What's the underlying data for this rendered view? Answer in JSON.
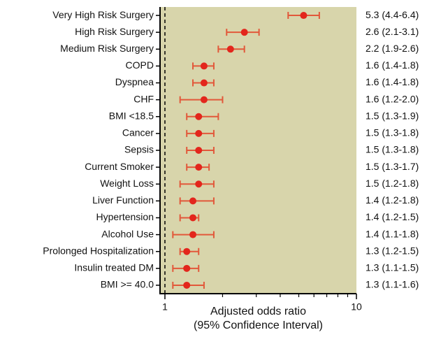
{
  "chart_data": {
    "type": "forest",
    "categories": [
      "Very High Risk Surgery",
      "High Risk Surgery",
      "Medium Risk Surgery",
      "COPD",
      "Dyspnea",
      "CHF",
      "BMI <18.5",
      "Cancer",
      "Sepsis",
      "Current Smoker",
      "Weight Loss",
      "Liver Function",
      "Hypertension",
      "Alcohol Use",
      "Prolonged Hospitalization",
      "Insulin treated DM",
      "BMI >= 40.0"
    ],
    "values": [
      5.3,
      2.6,
      2.2,
      1.6,
      1.6,
      1.6,
      1.5,
      1.5,
      1.5,
      1.5,
      1.5,
      1.4,
      1.4,
      1.4,
      1.3,
      1.3,
      1.3
    ],
    "lower": [
      4.4,
      2.1,
      1.9,
      1.4,
      1.4,
      1.2,
      1.3,
      1.3,
      1.3,
      1.3,
      1.2,
      1.2,
      1.2,
      1.1,
      1.2,
      1.1,
      1.1
    ],
    "upper": [
      6.4,
      3.1,
      2.6,
      1.8,
      1.8,
      2.0,
      1.9,
      1.8,
      1.8,
      1.7,
      1.8,
      1.8,
      1.5,
      1.8,
      1.5,
      1.5,
      1.6
    ],
    "value_labels": [
      "5.3 (4.4-6.4)",
      "2.6 (2.1-3.1)",
      "2.2 (1.9-2.6)",
      "1.6 (1.4-1.8)",
      "1.6 (1.4-1.8)",
      "1.6 (1.2-2.0)",
      "1.5 (1.3-1.9)",
      "1.5 (1.3-1.8)",
      "1.5 (1.3-1.8)",
      "1.5 (1.3-1.7)",
      "1.5 (1.2-1.8)",
      "1.4 (1.2-1.8)",
      "1.4 (1.2-1.5)",
      "1.4 (1.1-1.8)",
      "1.3 (1.2-1.5)",
      "1.3 (1.1-1.5)",
      "1.3 (1.1-1.6)"
    ],
    "xlim": [
      0.943,
      10
    ],
    "xticks": [
      1,
      10
    ],
    "minor_xticks": [
      2,
      3,
      4,
      5,
      6,
      7,
      8,
      9
    ],
    "log_x": true,
    "reference_line": 1,
    "xlabel": [
      "Adjusted odds ratio",
      "(95% Confidence Interval)"
    ],
    "color": "#e3261c",
    "bar_color": "#e2583a",
    "background": "#d8d5ab"
  }
}
